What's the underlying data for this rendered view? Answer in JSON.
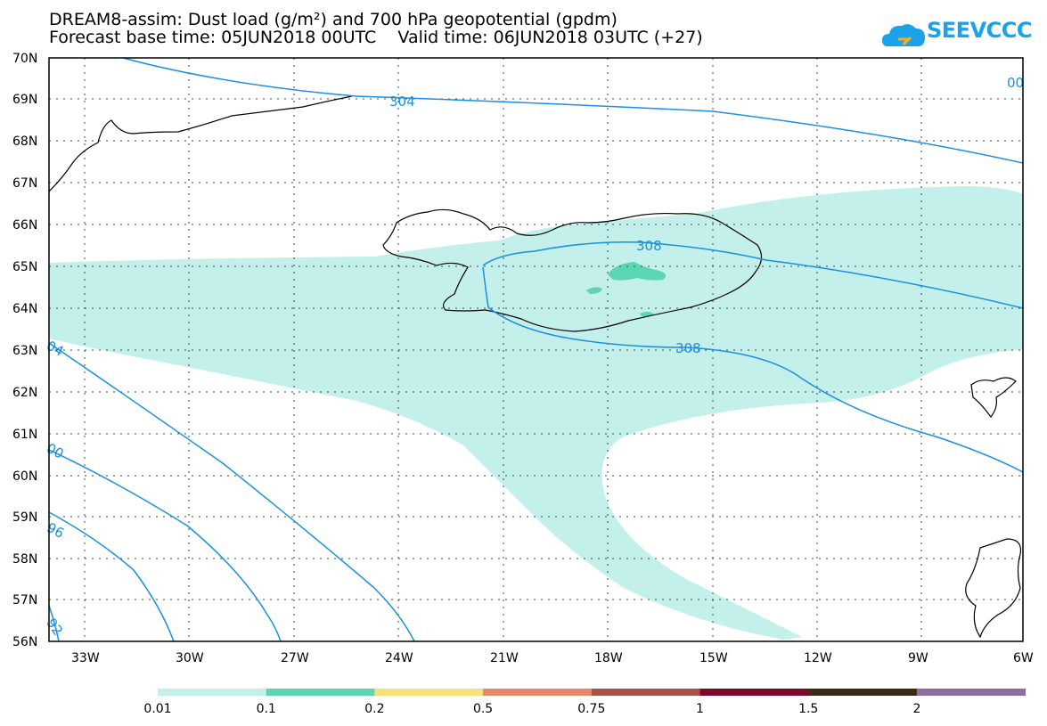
{
  "title": {
    "line1": "DREAM8-assim: Dust load (g/m²) and 700 hPa geopotential (gpdm)",
    "line2": "Forecast base time: 05JUN2018 00UTC    Valid time: 06JUN2018 03UTC (+27)"
  },
  "logo": {
    "text": "SEEVCCC",
    "color": "#1aa3e8"
  },
  "map": {
    "lat_labels": [
      "70N",
      "69N",
      "68N",
      "67N",
      "66N",
      "65N",
      "64N",
      "63N",
      "62N",
      "61N",
      "60N",
      "59N",
      "58N",
      "57N",
      "56N"
    ],
    "lon_labels": [
      "33W",
      "30W",
      "27W",
      "24W",
      "21W",
      "18W",
      "15W",
      "12W",
      "9W",
      "6W"
    ]
  },
  "contours": {
    "labels": [
      "304",
      "308",
      "308",
      "04",
      "00",
      "96",
      "92",
      "00"
    ],
    "color": "#1b8fe0"
  },
  "colorbar": {
    "colors": [
      "#c4f0ec",
      "#5cd6b0",
      "#f5e27a",
      "#e8886a",
      "#a8524a",
      "#7a0a2a",
      "#3d2a16",
      "#8e6ea0"
    ],
    "labels": [
      "0.01",
      "0.1",
      "0.2",
      "0.5",
      "0.75",
      "1",
      "1.5",
      "2"
    ]
  }
}
